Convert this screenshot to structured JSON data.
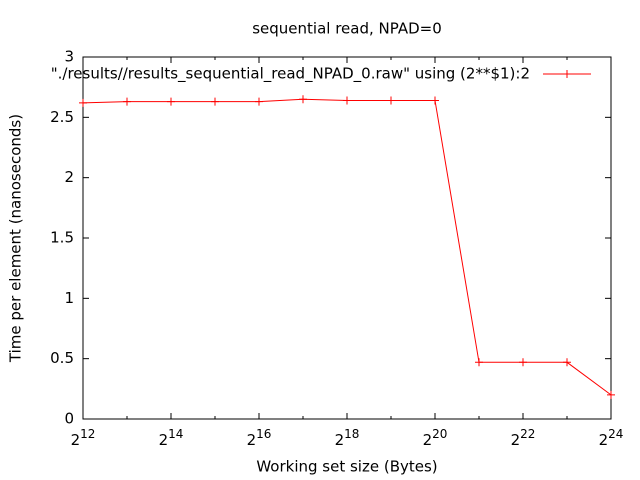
{
  "chart_data": {
    "type": "line",
    "title": "sequential read, NPAD=0",
    "x_label": "Working set size (Bytes)",
    "y_label": "Time per element (nanoseconds)",
    "x": [
      4096,
      8192,
      16384,
      32768,
      65536,
      131072,
      262144,
      524288,
      1048576,
      2097152,
      4194304,
      8388608,
      16777216
    ],
    "series": [
      {
        "name": "\"./results//results_sequential_read_NPAD_0.raw\" using (2**$1):2",
        "color": "#ff0000",
        "values": [
          2.62,
          2.63,
          2.63,
          2.63,
          2.63,
          2.65,
          2.64,
          2.64,
          2.64,
          0.47,
          0.47,
          0.47,
          0.2
        ]
      }
    ],
    "x_log_base": 2,
    "xlim": [
      4096,
      16777216
    ],
    "xticks": [
      {
        "value": 4096,
        "label": "2^12"
      },
      {
        "value": 16384,
        "label": "2^14"
      },
      {
        "value": 65536,
        "label": "2^16"
      },
      {
        "value": 262144,
        "label": "2^18"
      },
      {
        "value": 1048576,
        "label": "2^20"
      },
      {
        "value": 4194304,
        "label": "2^22"
      },
      {
        "value": 16777216,
        "label": "2^24"
      }
    ],
    "xminorticks": [
      8192,
      32768,
      131072,
      524288,
      2097152,
      8388608
    ],
    "ylim": [
      0,
      3
    ],
    "yticks": [
      0,
      0.5,
      1,
      1.5,
      2,
      2.5,
      3
    ],
    "legend": "top-right"
  }
}
